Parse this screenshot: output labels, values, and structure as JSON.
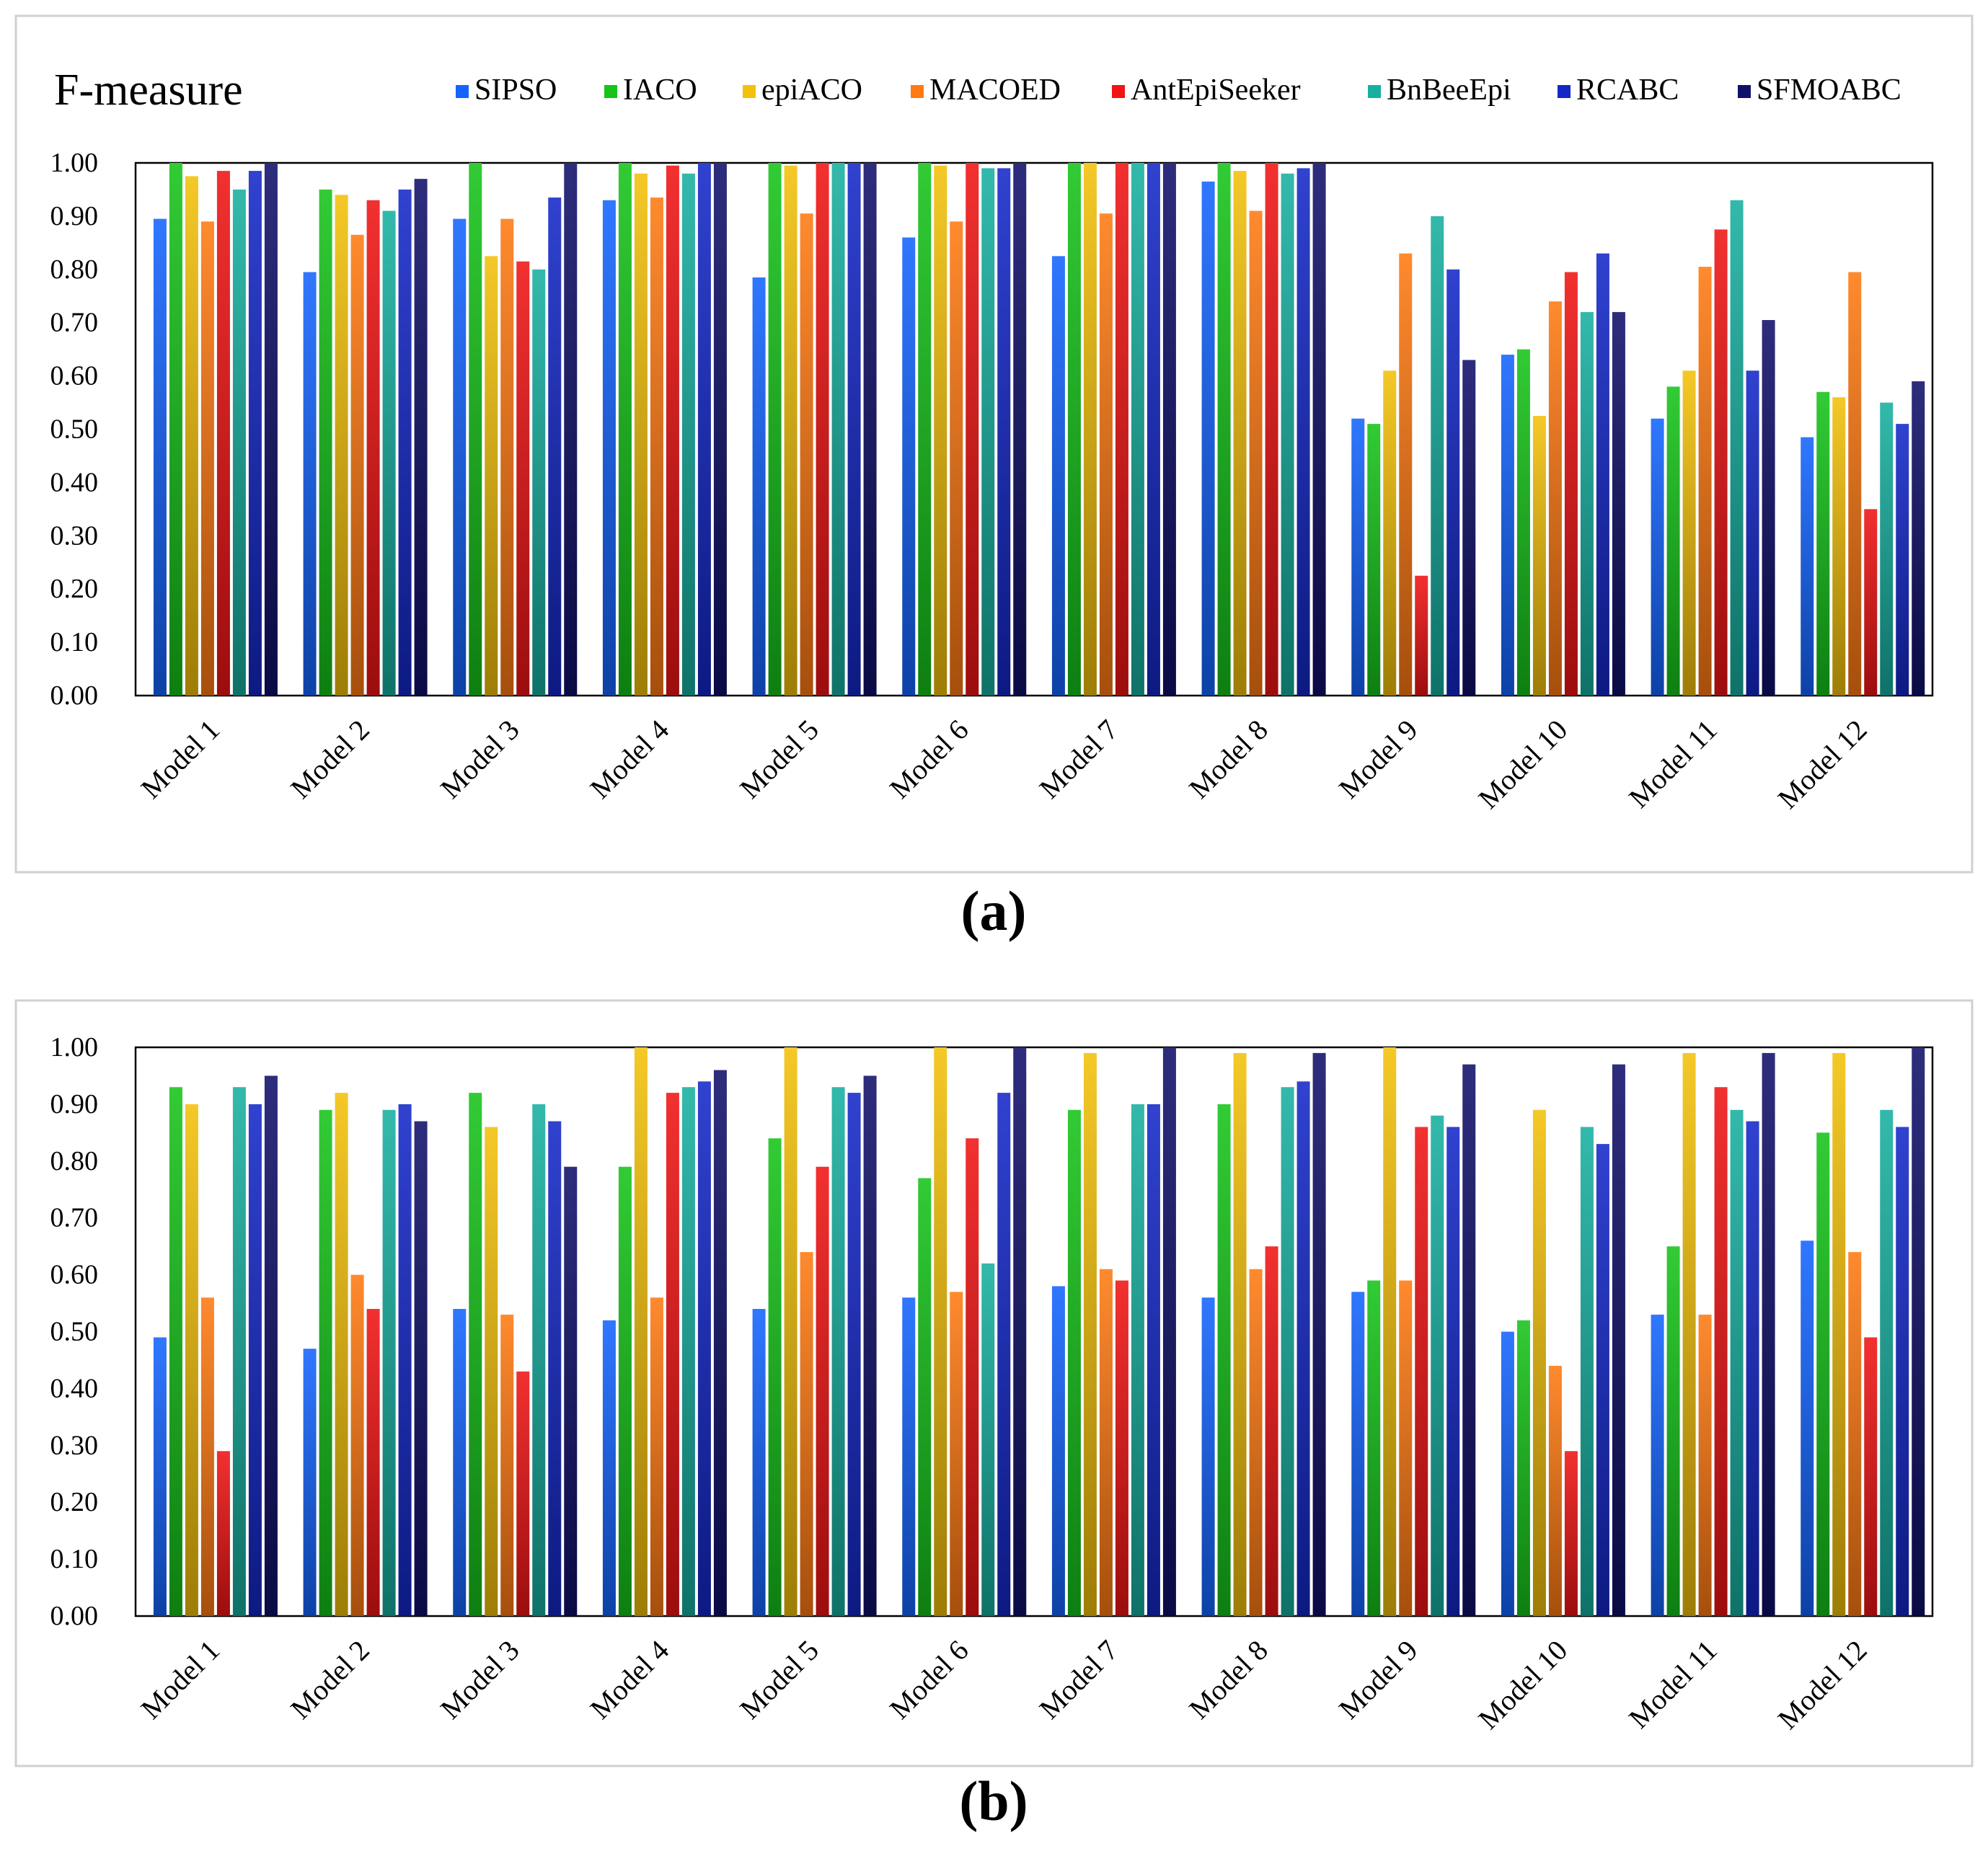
{
  "colors": {
    "SIPSO": "#1464ff",
    "IACO": "#16c41a",
    "epiACO": "#f3c10a",
    "MACOED": "#ff7a12",
    "AntEpiSeeker": "#f01414",
    "BnBeeEpi": "#17b0a0",
    "RCABC": "#1428c8",
    "SFMOABC": "#10106a"
  },
  "chart_data": [
    {
      "type": "bar",
      "panel_label": "(a)",
      "title": "F-measure",
      "xlabel": "",
      "ylabel": "",
      "ylim": [
        0,
        1
      ],
      "yticks": [
        "0.00",
        "0.10",
        "0.20",
        "0.30",
        "0.40",
        "0.50",
        "0.60",
        "0.70",
        "0.80",
        "0.90",
        "1.00"
      ],
      "legend_position": "top",
      "categories": [
        "Model 1",
        "Model 2",
        "Model 3",
        "Model 4",
        "Model 5",
        "Model 6",
        "Model 7",
        "Model 8",
        "Model 9",
        "Model 10",
        "Model 11",
        "Model 12"
      ],
      "series": [
        {
          "name": "SIPSO",
          "values": [
            0.895,
            0.795,
            0.895,
            0.93,
            0.785,
            0.86,
            0.825,
            0.965,
            0.52,
            0.64,
            0.52,
            0.485
          ]
        },
        {
          "name": "IACO",
          "values": [
            1.0,
            0.95,
            1.0,
            1.0,
            1.0,
            1.0,
            1.0,
            1.0,
            0.51,
            0.65,
            0.58,
            0.57
          ]
        },
        {
          "name": "epiACO",
          "values": [
            0.975,
            0.94,
            0.825,
            0.98,
            0.995,
            0.995,
            1.0,
            0.985,
            0.61,
            0.525,
            0.61,
            0.56
          ]
        },
        {
          "name": "MACOED",
          "values": [
            0.89,
            0.865,
            0.895,
            0.935,
            0.905,
            0.89,
            0.905,
            0.91,
            0.83,
            0.74,
            0.805,
            0.795
          ]
        },
        {
          "name": "AntEpiSeeker",
          "values": [
            0.985,
            0.93,
            0.815,
            0.995,
            1.0,
            1.0,
            1.0,
            1.0,
            0.225,
            0.795,
            0.875,
            0.35
          ]
        },
        {
          "name": "BnBeeEpi",
          "values": [
            0.95,
            0.91,
            0.8,
            0.98,
            1.0,
            0.99,
            1.0,
            0.98,
            0.9,
            0.72,
            0.93,
            0.55
          ]
        },
        {
          "name": "RCABC",
          "values": [
            0.985,
            0.95,
            0.935,
            1.0,
            1.0,
            0.99,
            1.0,
            0.99,
            0.8,
            0.83,
            0.61,
            0.51
          ]
        },
        {
          "name": "SFMOABC",
          "values": [
            1.0,
            0.97,
            1.0,
            1.0,
            1.0,
            1.0,
            1.0,
            1.0,
            0.63,
            0.72,
            0.705,
            0.59
          ]
        }
      ]
    },
    {
      "type": "bar",
      "panel_label": "(b)",
      "title": "",
      "xlabel": "",
      "ylabel": "",
      "ylim": [
        0,
        1
      ],
      "yticks": [
        "0.00",
        "0.10",
        "0.20",
        "0.30",
        "0.40",
        "0.50",
        "0.60",
        "0.70",
        "0.80",
        "0.90",
        "1.00"
      ],
      "legend_position": "none",
      "categories": [
        "Model 1",
        "Model 2",
        "Model 3",
        "Model 4",
        "Model 5",
        "Model 6",
        "Model 7",
        "Model 8",
        "Model 9",
        "Model 10",
        "Model 11",
        "Model 12"
      ],
      "series": [
        {
          "name": "SIPSO",
          "values": [
            0.49,
            0.47,
            0.54,
            0.52,
            0.54,
            0.56,
            0.58,
            0.56,
            0.57,
            0.5,
            0.53,
            0.66
          ]
        },
        {
          "name": "IACO",
          "values": [
            0.93,
            0.89,
            0.92,
            0.79,
            0.84,
            0.77,
            0.89,
            0.9,
            0.59,
            0.52,
            0.65,
            0.85
          ]
        },
        {
          "name": "epiACO",
          "values": [
            0.9,
            0.92,
            0.86,
            1.0,
            1.0,
            1.0,
            0.99,
            0.99,
            1.0,
            0.89,
            0.99,
            0.99
          ]
        },
        {
          "name": "MACOED",
          "values": [
            0.56,
            0.6,
            0.53,
            0.56,
            0.64,
            0.57,
            0.61,
            0.61,
            0.59,
            0.44,
            0.53,
            0.64
          ]
        },
        {
          "name": "AntEpiSeeker",
          "values": [
            0.29,
            0.54,
            0.43,
            0.92,
            0.79,
            0.84,
            0.59,
            0.65,
            0.86,
            0.29,
            0.93,
            0.49
          ]
        },
        {
          "name": "BnBeeEpi",
          "values": [
            0.93,
            0.89,
            0.9,
            0.93,
            0.93,
            0.62,
            0.9,
            0.93,
            0.88,
            0.86,
            0.89,
            0.89
          ]
        },
        {
          "name": "RCABC",
          "values": [
            0.9,
            0.9,
            0.87,
            0.94,
            0.92,
            0.92,
            0.9,
            0.94,
            0.86,
            0.83,
            0.87,
            0.86
          ]
        },
        {
          "name": "SFMOABC",
          "values": [
            0.95,
            0.87,
            0.79,
            0.96,
            0.95,
            1.0,
            1.0,
            0.99,
            0.97,
            0.97,
            0.99,
            1.0
          ]
        }
      ]
    }
  ]
}
